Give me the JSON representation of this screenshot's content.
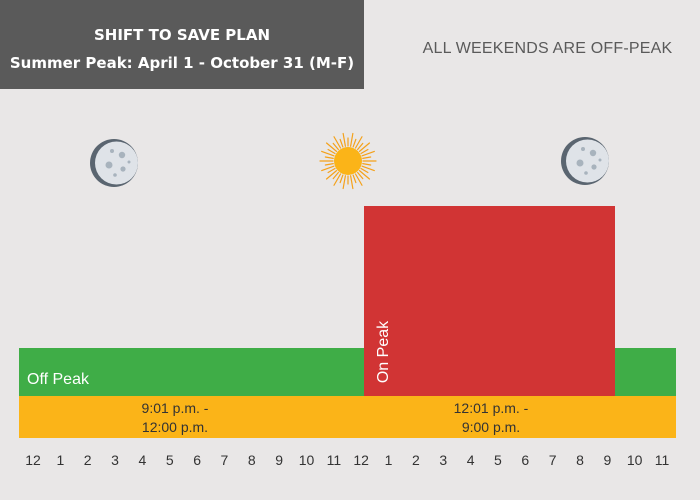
{
  "title": {
    "line1": "SHIFT TO SAVE PLAN",
    "line2": "Summer Peak: April 1 - October 31 (M-F)"
  },
  "weekend_note": "ALL WEEKENDS ARE OFF-PEAK",
  "icons": {
    "left": "moon-icon",
    "center": "sun-icon",
    "right": "moon-icon"
  },
  "periods": {
    "off_peak_label": "Off Peak",
    "on_peak_label": "On Peak",
    "on_peak_start_hour": 12,
    "on_peak_end_hour": 21
  },
  "time_ranges": {
    "off_peak": {
      "line1": "9:01 p.m. -",
      "line2": "12:00 p.m."
    },
    "on_peak": {
      "line1": "12:01 p.m. -",
      "line2": "9:00 p.m."
    }
  },
  "hours": [
    "12",
    "1",
    "2",
    "3",
    "4",
    "5",
    "6",
    "7",
    "8",
    "9",
    "10",
    "11",
    "12",
    "1",
    "2",
    "3",
    "4",
    "5",
    "6",
    "7",
    "8",
    "9",
    "10",
    "11"
  ],
  "colors": {
    "off_peak": "#3fad47",
    "on_peak": "#d13434",
    "time_bar": "#fbb418",
    "header": "#5a5a5a"
  }
}
